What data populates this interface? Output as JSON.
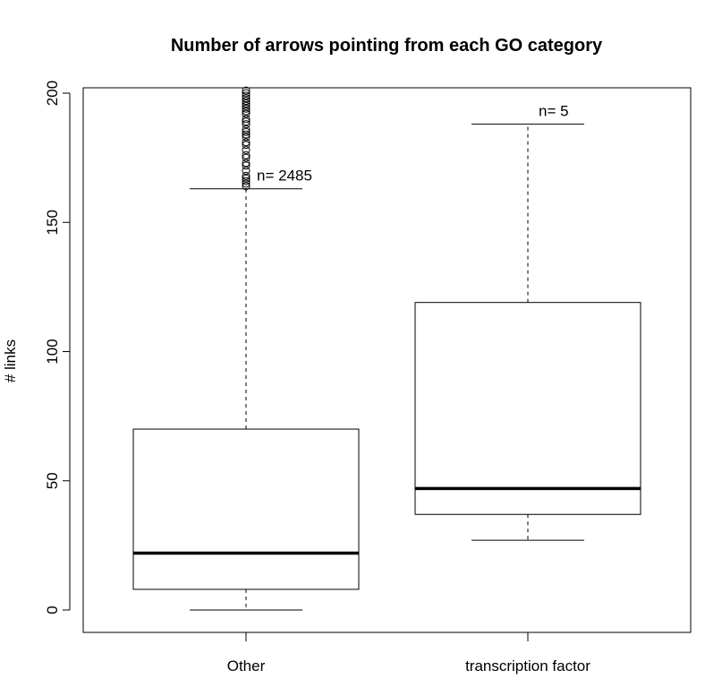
{
  "chart_data": {
    "type": "boxplot",
    "title": "Number of arrows pointing from each GO category",
    "xlabel": "",
    "ylabel": "# links",
    "ylim": [
      -9,
      202
    ],
    "y_ticks": [
      0,
      50,
      100,
      150,
      200
    ],
    "y_tick_labels": [
      "0",
      "50",
      "100",
      "150",
      "200"
    ],
    "grid": false,
    "categories": [
      "Other",
      "transcription factor"
    ],
    "boxes": [
      {
        "category": "Other",
        "whisker_low": 0,
        "q1": 8,
        "median": 22,
        "q3": 70,
        "whisker_high": 163,
        "n_label": "n= 2485",
        "outliers": [
          164,
          165,
          166,
          167,
          168,
          170,
          172,
          173,
          175,
          176,
          178,
          180,
          181,
          183,
          184,
          185,
          186,
          188,
          189,
          190,
          192,
          193,
          194,
          195,
          196,
          197,
          198,
          199,
          200,
          201
        ]
      },
      {
        "category": "transcription factor",
        "whisker_low": 27,
        "q1": 37,
        "median": 47,
        "q3": 119,
        "whisker_high": 188,
        "n_label": "n= 5",
        "outliers": []
      }
    ]
  }
}
